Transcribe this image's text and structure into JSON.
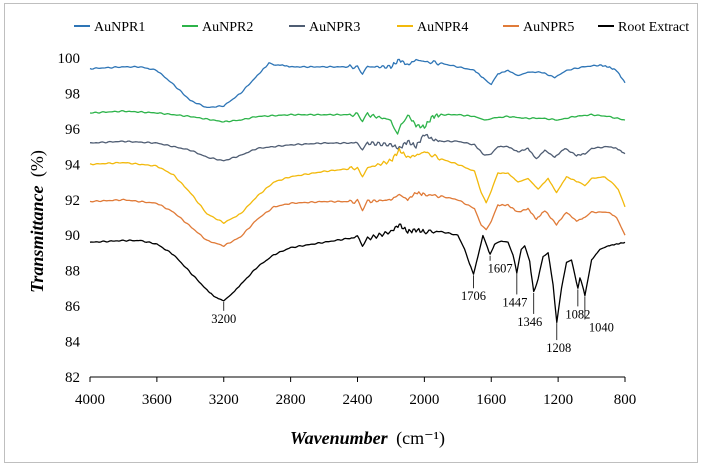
{
  "chart_data": {
    "type": "line",
    "title": "",
    "xlabel": "Wavenumber",
    "xlabel_unit": "(cm⁻¹)",
    "ylabel": "Transmittance",
    "ylabel_unit": "(%)",
    "xlim": [
      4000,
      800
    ],
    "ylim": [
      82,
      100
    ],
    "x_ticks": [
      4000,
      3600,
      3200,
      2800,
      2400,
      2000,
      1600,
      1200,
      800
    ],
    "y_ticks": [
      82,
      84,
      86,
      88,
      90,
      92,
      94,
      96,
      98,
      100
    ],
    "grid": false,
    "legend_position": "top",
    "series": [
      {
        "name": "AuNPR1",
        "color": "#2e75b6",
        "points": [
          [
            4000,
            99.4
          ],
          [
            3800,
            99.5
          ],
          [
            3700,
            99.5
          ],
          [
            3600,
            99.3
          ],
          [
            3500,
            98.5
          ],
          [
            3400,
            97.6
          ],
          [
            3300,
            97.2
          ],
          [
            3200,
            97.3
          ],
          [
            3100,
            98.0
          ],
          [
            3000,
            99.0
          ],
          [
            2930,
            99.7
          ],
          [
            2900,
            99.6
          ],
          [
            2850,
            99.6
          ],
          [
            2800,
            99.5
          ],
          [
            2600,
            99.5
          ],
          [
            2400,
            99.5
          ],
          [
            2370,
            99.1
          ],
          [
            2340,
            99.5
          ],
          [
            2200,
            99.5
          ],
          [
            2150,
            99.9
          ],
          [
            2100,
            99.6
          ],
          [
            2050,
            99.9
          ],
          [
            2000,
            99.8
          ],
          [
            1900,
            99.7
          ],
          [
            1800,
            99.5
          ],
          [
            1700,
            99.3
          ],
          [
            1640,
            98.8
          ],
          [
            1600,
            98.5
          ],
          [
            1560,
            99.1
          ],
          [
            1500,
            99.3
          ],
          [
            1440,
            99.0
          ],
          [
            1380,
            99.2
          ],
          [
            1300,
            99.2
          ],
          [
            1220,
            98.9
          ],
          [
            1150,
            99.3
          ],
          [
            1050,
            99.5
          ],
          [
            950,
            99.6
          ],
          [
            900,
            99.5
          ],
          [
            850,
            99.3
          ],
          [
            800,
            98.6
          ]
        ]
      },
      {
        "name": "AuNPR2",
        "color": "#2db34a",
        "points": [
          [
            4000,
            96.9
          ],
          [
            3800,
            97.0
          ],
          [
            3600,
            96.9
          ],
          [
            3400,
            96.7
          ],
          [
            3200,
            96.4
          ],
          [
            3100,
            96.5
          ],
          [
            3000,
            96.7
          ],
          [
            2800,
            96.8
          ],
          [
            2600,
            96.8
          ],
          [
            2400,
            96.8
          ],
          [
            2370,
            96.4
          ],
          [
            2340,
            96.8
          ],
          [
            2200,
            96.5
          ],
          [
            2160,
            95.7
          ],
          [
            2140,
            96.3
          ],
          [
            2100,
            96.8
          ],
          [
            2050,
            96.2
          ],
          [
            2000,
            96.1
          ],
          [
            1950,
            96.7
          ],
          [
            1900,
            96.8
          ],
          [
            1800,
            96.8
          ],
          [
            1700,
            96.7
          ],
          [
            1640,
            96.5
          ],
          [
            1600,
            96.6
          ],
          [
            1500,
            96.7
          ],
          [
            1400,
            96.6
          ],
          [
            1300,
            96.6
          ],
          [
            1200,
            96.5
          ],
          [
            1100,
            96.7
          ],
          [
            1000,
            96.8
          ],
          [
            900,
            96.7
          ],
          [
            800,
            96.5
          ]
        ]
      },
      {
        "name": "AuNPR3",
        "color": "#4f5d73",
        "points": [
          [
            4000,
            95.2
          ],
          [
            3800,
            95.3
          ],
          [
            3600,
            95.2
          ],
          [
            3400,
            94.8
          ],
          [
            3300,
            94.4
          ],
          [
            3200,
            94.2
          ],
          [
            3100,
            94.5
          ],
          [
            3000,
            94.9
          ],
          [
            2800,
            95.1
          ],
          [
            2600,
            95.2
          ],
          [
            2400,
            95.2
          ],
          [
            2370,
            94.9
          ],
          [
            2340,
            95.2
          ],
          [
            2200,
            95.1
          ],
          [
            2150,
            94.9
          ],
          [
            2100,
            95.3
          ],
          [
            2050,
            95.0
          ],
          [
            2000,
            95.7
          ],
          [
            1950,
            95.4
          ],
          [
            1900,
            95.3
          ],
          [
            1800,
            95.3
          ],
          [
            1700,
            95.1
          ],
          [
            1640,
            94.5
          ],
          [
            1600,
            94.6
          ],
          [
            1560,
            95.0
          ],
          [
            1500,
            95.0
          ],
          [
            1440,
            94.7
          ],
          [
            1380,
            94.9
          ],
          [
            1330,
            94.3
          ],
          [
            1280,
            94.8
          ],
          [
            1220,
            94.4
          ],
          [
            1160,
            94.9
          ],
          [
            1090,
            94.5
          ],
          [
            1040,
            94.6
          ],
          [
            1000,
            94.9
          ],
          [
            900,
            95.0
          ],
          [
            850,
            94.9
          ],
          [
            800,
            94.6
          ]
        ]
      },
      {
        "name": "AuNPR4",
        "color": "#f2b90c",
        "points": [
          [
            4000,
            94.0
          ],
          [
            3800,
            94.1
          ],
          [
            3600,
            93.9
          ],
          [
            3500,
            93.4
          ],
          [
            3400,
            92.4
          ],
          [
            3300,
            91.2
          ],
          [
            3200,
            90.7
          ],
          [
            3100,
            91.2
          ],
          [
            3000,
            92.2
          ],
          [
            2900,
            93.0
          ],
          [
            2800,
            93.3
          ],
          [
            2600,
            93.6
          ],
          [
            2400,
            93.8
          ],
          [
            2370,
            93.4
          ],
          [
            2340,
            93.8
          ],
          [
            2200,
            94.2
          ],
          [
            2150,
            94.8
          ],
          [
            2100,
            94.4
          ],
          [
            2050,
            94.5
          ],
          [
            2000,
            94.7
          ],
          [
            1900,
            94.3
          ],
          [
            1800,
            94.0
          ],
          [
            1700,
            93.6
          ],
          [
            1660,
            92.4
          ],
          [
            1630,
            91.8
          ],
          [
            1600,
            92.5
          ],
          [
            1560,
            93.5
          ],
          [
            1500,
            93.5
          ],
          [
            1440,
            93.0
          ],
          [
            1380,
            93.2
          ],
          [
            1320,
            92.6
          ],
          [
            1260,
            93.2
          ],
          [
            1210,
            92.4
          ],
          [
            1150,
            93.3
          ],
          [
            1080,
            93.0
          ],
          [
            1040,
            92.8
          ],
          [
            1000,
            93.2
          ],
          [
            920,
            93.3
          ],
          [
            880,
            93.0
          ],
          [
            840,
            92.6
          ],
          [
            800,
            91.6
          ]
        ]
      },
      {
        "name": "AuNPR5",
        "color": "#e07b39",
        "points": [
          [
            4000,
            91.9
          ],
          [
            3800,
            92.0
          ],
          [
            3600,
            91.8
          ],
          [
            3500,
            91.3
          ],
          [
            3400,
            90.5
          ],
          [
            3300,
            89.7
          ],
          [
            3200,
            89.4
          ],
          [
            3100,
            89.9
          ],
          [
            3000,
            90.9
          ],
          [
            2900,
            91.6
          ],
          [
            2800,
            91.8
          ],
          [
            2600,
            91.9
          ],
          [
            2400,
            91.9
          ],
          [
            2370,
            91.4
          ],
          [
            2340,
            91.9
          ],
          [
            2200,
            92.0
          ],
          [
            2150,
            92.3
          ],
          [
            2100,
            92.0
          ],
          [
            2050,
            92.4
          ],
          [
            2000,
            92.3
          ],
          [
            1900,
            92.2
          ],
          [
            1800,
            92.0
          ],
          [
            1700,
            91.5
          ],
          [
            1660,
            90.6
          ],
          [
            1630,
            90.3
          ],
          [
            1600,
            90.8
          ],
          [
            1560,
            91.7
          ],
          [
            1500,
            91.7
          ],
          [
            1440,
            91.3
          ],
          [
            1380,
            91.5
          ],
          [
            1330,
            90.9
          ],
          [
            1280,
            91.4
          ],
          [
            1210,
            90.6
          ],
          [
            1150,
            91.3
          ],
          [
            1090,
            90.8
          ],
          [
            1040,
            91.0
          ],
          [
            1000,
            91.3
          ],
          [
            900,
            91.3
          ],
          [
            850,
            91.0
          ],
          [
            800,
            90.0
          ]
        ]
      },
      {
        "name": "Root Extract",
        "color": "#000000",
        "points": [
          [
            4000,
            89.6
          ],
          [
            3800,
            89.7
          ],
          [
            3700,
            89.7
          ],
          [
            3600,
            89.5
          ],
          [
            3500,
            88.9
          ],
          [
            3400,
            87.9
          ],
          [
            3300,
            86.9
          ],
          [
            3250,
            86.5
          ],
          [
            3200,
            86.3
          ],
          [
            3150,
            86.7
          ],
          [
            3100,
            87.2
          ],
          [
            3000,
            88.2
          ],
          [
            2900,
            88.9
          ],
          [
            2800,
            89.3
          ],
          [
            2600,
            89.6
          ],
          [
            2400,
            89.9
          ],
          [
            2370,
            89.4
          ],
          [
            2340,
            89.8
          ],
          [
            2200,
            90.2
          ],
          [
            2150,
            90.6
          ],
          [
            2100,
            90.2
          ],
          [
            2050,
            90.3
          ],
          [
            2000,
            90.2
          ],
          [
            1900,
            90.2
          ],
          [
            1800,
            90.0
          ],
          [
            1760,
            89.2
          ],
          [
            1730,
            88.4
          ],
          [
            1706,
            87.8
          ],
          [
            1680,
            88.8
          ],
          [
            1650,
            90.0
          ],
          [
            1630,
            89.5
          ],
          [
            1607,
            88.9
          ],
          [
            1580,
            89.5
          ],
          [
            1540,
            89.7
          ],
          [
            1500,
            89.6
          ],
          [
            1470,
            88.9
          ],
          [
            1447,
            87.9
          ],
          [
            1420,
            89.2
          ],
          [
            1400,
            89.4
          ],
          [
            1370,
            88.5
          ],
          [
            1346,
            86.8
          ],
          [
            1320,
            87.5
          ],
          [
            1290,
            88.8
          ],
          [
            1260,
            89.0
          ],
          [
            1230,
            87.2
          ],
          [
            1208,
            85.1
          ],
          [
            1180,
            87.0
          ],
          [
            1150,
            88.5
          ],
          [
            1120,
            88.6
          ],
          [
            1100,
            87.8
          ],
          [
            1082,
            87.0
          ],
          [
            1070,
            87.6
          ],
          [
            1055,
            87.2
          ],
          [
            1040,
            86.6
          ],
          [
            1020,
            87.6
          ],
          [
            1000,
            88.6
          ],
          [
            950,
            89.2
          ],
          [
            900,
            89.4
          ],
          [
            850,
            89.5
          ],
          [
            800,
            89.6
          ]
        ]
      }
    ],
    "annotations": [
      {
        "text": "3200",
        "x": 3200,
        "y": 86.3
      },
      {
        "text": "1706",
        "x": 1706,
        "y": 87.8
      },
      {
        "text": "1607",
        "x": 1607,
        "y": 88.9
      },
      {
        "text": "1447",
        "x": 1447,
        "y": 87.9
      },
      {
        "text": "1346",
        "x": 1346,
        "y": 86.8
      },
      {
        "text": "1208",
        "x": 1208,
        "y": 85.1
      },
      {
        "text": "1082",
        "x": 1082,
        "y": 87.0
      },
      {
        "text": "1040",
        "x": 1040,
        "y": 86.6
      }
    ]
  }
}
